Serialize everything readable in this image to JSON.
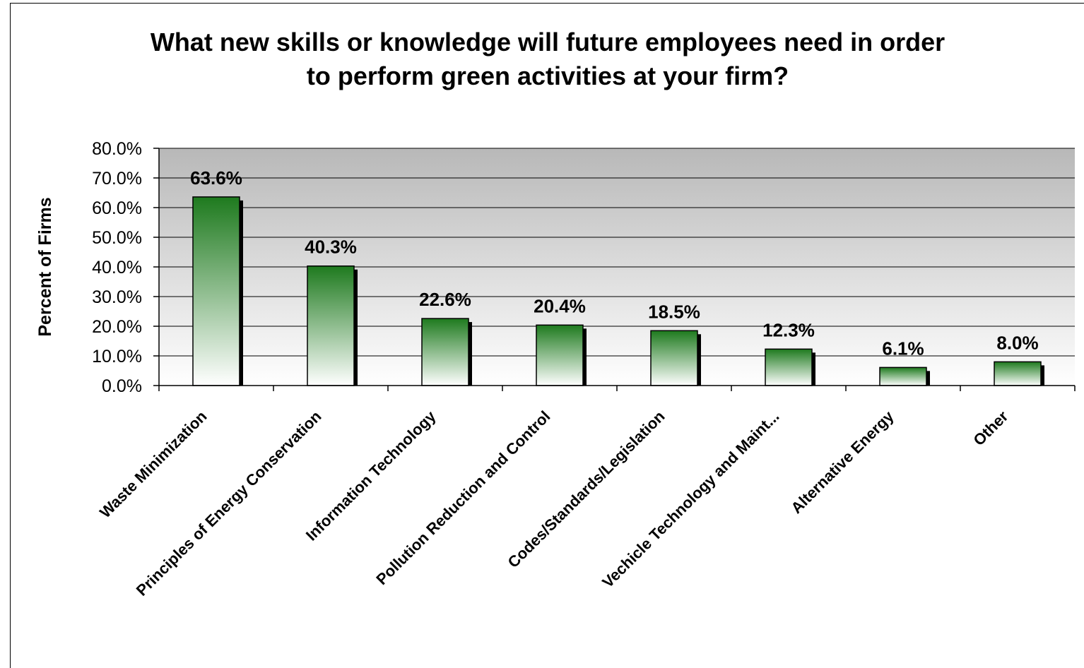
{
  "chart_data": {
    "type": "bar",
    "title_lines": [
      "What new skills or knowledge will future employees need in order",
      "to perform green activities at your firm?"
    ],
    "ylabel": "Percent of Firms",
    "ylim": [
      0,
      80
    ],
    "yticks": [
      "0.0%",
      "10.0%",
      "20.0%",
      "30.0%",
      "40.0%",
      "50.0%",
      "60.0%",
      "70.0%",
      "80.0%"
    ],
    "categories": [
      "Waste Minimization",
      "Principles of Energy Conservation",
      "Information Technology",
      "Pollution Reduction and Control",
      "Codes/Standards/Legislation",
      "Vechicle Technology and Maint...",
      "Alternative Energy",
      "Other"
    ],
    "values": [
      63.6,
      40.3,
      22.6,
      20.4,
      18.5,
      12.3,
      6.1,
      8.0
    ],
    "data_labels": [
      "63.6%",
      "40.3%",
      "22.6%",
      "20.4%",
      "18.5%",
      "12.3%",
      "6.1%",
      "8.0%"
    ],
    "grid": true,
    "legend": "none",
    "colors": {
      "bar_top": "#1e7a1e",
      "bar_bottom": "#ffffff",
      "shadow": "#000000",
      "plot_top": "#b8b8b8",
      "plot_bottom": "#ffffff"
    }
  }
}
